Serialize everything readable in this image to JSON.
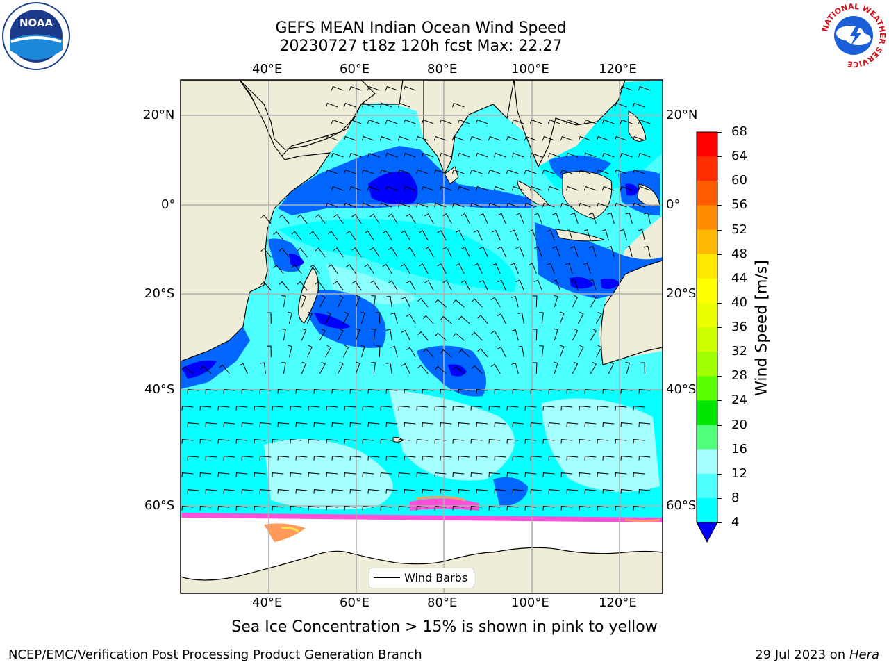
{
  "header": {
    "title_line1": "GEFS MEAN Indian Ocean Wind Speed",
    "title_line2": "20230727 t18z 120h fcst   Max: 22.27"
  },
  "map": {
    "lon_ticks": [
      "40°E",
      "60°E",
      "80°E",
      "100°E",
      "120°E"
    ],
    "lat_ticks": [
      "20°N",
      "0°",
      "20°S",
      "40°S",
      "60°S"
    ],
    "legend_label": "Wind Barbs"
  },
  "colorbar": {
    "label": "Wind Speed [m/s]",
    "ticks": [
      "68",
      "64",
      "60",
      "56",
      "52",
      "48",
      "44",
      "40",
      "36",
      "32",
      "28",
      "24",
      "20",
      "16",
      "12",
      "8",
      "4"
    ],
    "colors": [
      "#ff0000",
      "#ff2e00",
      "#ff5d00",
      "#ff8b00",
      "#ffb900",
      "#ffe800",
      "#ffff00",
      "#ebff00",
      "#cdff00",
      "#a0ff00",
      "#5aff00",
      "#00e600",
      "#50ff7a",
      "#a6ffff",
      "#4dffff",
      "#00ffff",
      "#0066ff"
    ],
    "extend_color": "#0000ff"
  },
  "caption": "Sea Ice Concentration > 15% is shown in pink to yellow",
  "footer": {
    "left": "NCEP/EMC/Verification Post Processing Product Generation Branch",
    "right_prefix": "29 Jul 2023 on ",
    "right_host": "Hera"
  },
  "logos": {
    "noaa_text": "NOAA",
    "nws_text": "NATIONAL WEATHER SERVICE"
  }
}
